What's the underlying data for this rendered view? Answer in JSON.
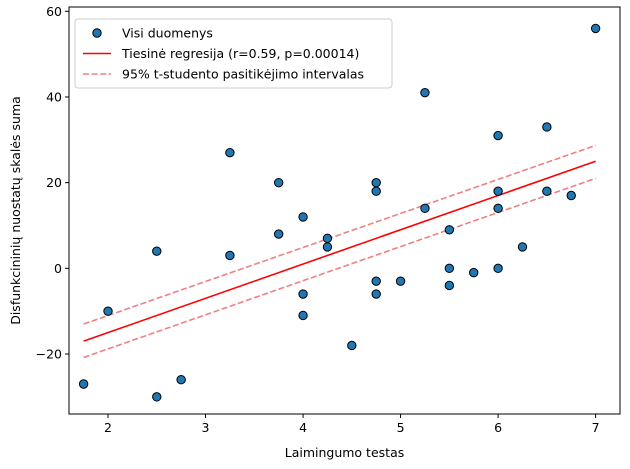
{
  "chart_data": {
    "type": "scatter",
    "xlabel": "Laimingumo testas",
    "ylabel": "Disfunkcininių nuostatų skalės suma",
    "xlim": [
      1.6,
      7.25
    ],
    "ylim": [
      -34,
      61
    ],
    "xticks": [
      2,
      3,
      4,
      5,
      6,
      7
    ],
    "yticks": [
      -20,
      0,
      20,
      40,
      60
    ],
    "grid": false,
    "legend_position": "top-left",
    "series": [
      {
        "name": "Visi duomenys",
        "kind": "points",
        "color": "#1f77b4",
        "edge_color": "#000000",
        "points": [
          [
            1.75,
            -27
          ],
          [
            2.0,
            -10
          ],
          [
            2.5,
            -30
          ],
          [
            2.5,
            4
          ],
          [
            2.75,
            -26
          ],
          [
            3.25,
            27
          ],
          [
            3.25,
            3
          ],
          [
            3.75,
            20
          ],
          [
            3.75,
            8
          ],
          [
            4.0,
            12
          ],
          [
            4.0,
            -6
          ],
          [
            4.0,
            -11
          ],
          [
            4.25,
            7
          ],
          [
            4.25,
            5
          ],
          [
            4.5,
            -18
          ],
          [
            4.75,
            20
          ],
          [
            4.75,
            18
          ],
          [
            4.75,
            -3
          ],
          [
            4.75,
            -6
          ],
          [
            5.0,
            -3
          ],
          [
            5.25,
            41
          ],
          [
            5.25,
            14
          ],
          [
            5.5,
            9
          ],
          [
            5.5,
            0
          ],
          [
            5.5,
            -4
          ],
          [
            5.75,
            -1
          ],
          [
            6.0,
            31
          ],
          [
            6.0,
            18
          ],
          [
            6.0,
            14
          ],
          [
            6.0,
            0
          ],
          [
            6.25,
            5
          ],
          [
            6.5,
            33
          ],
          [
            6.5,
            18
          ],
          [
            6.75,
            17
          ],
          [
            7.0,
            56
          ]
        ]
      },
      {
        "name": "Tiesinė regresija (r=0.59, p=0.00014)",
        "kind": "line",
        "color": "#ff0000",
        "dash": "solid",
        "x": [
          1.75,
          7.0
        ],
        "y": [
          -17,
          25
        ]
      },
      {
        "name": "95% t-studento pasitikėjimo intervalas",
        "kind": "line",
        "color": "#f08080",
        "dash": "dashed",
        "x": [
          1.75,
          7.0
        ],
        "y": [
          -13,
          28.7
        ]
      },
      {
        "name": "",
        "kind": "line",
        "color": "#f08080",
        "dash": "dashed",
        "x": [
          1.75,
          7.0
        ],
        "y": [
          -20.8,
          21
        ]
      }
    ],
    "legend": [
      {
        "label": "Visi duomenys",
        "marker": "point",
        "color": "#1f77b4"
      },
      {
        "label": "Tiesinė regresija (r=0.59, p=0.00014)",
        "marker": "solid-line",
        "color": "#ff0000"
      },
      {
        "label": "95% t-studento pasitikėjimo intervalas",
        "marker": "dashed-line",
        "color": "#f08080"
      }
    ]
  }
}
